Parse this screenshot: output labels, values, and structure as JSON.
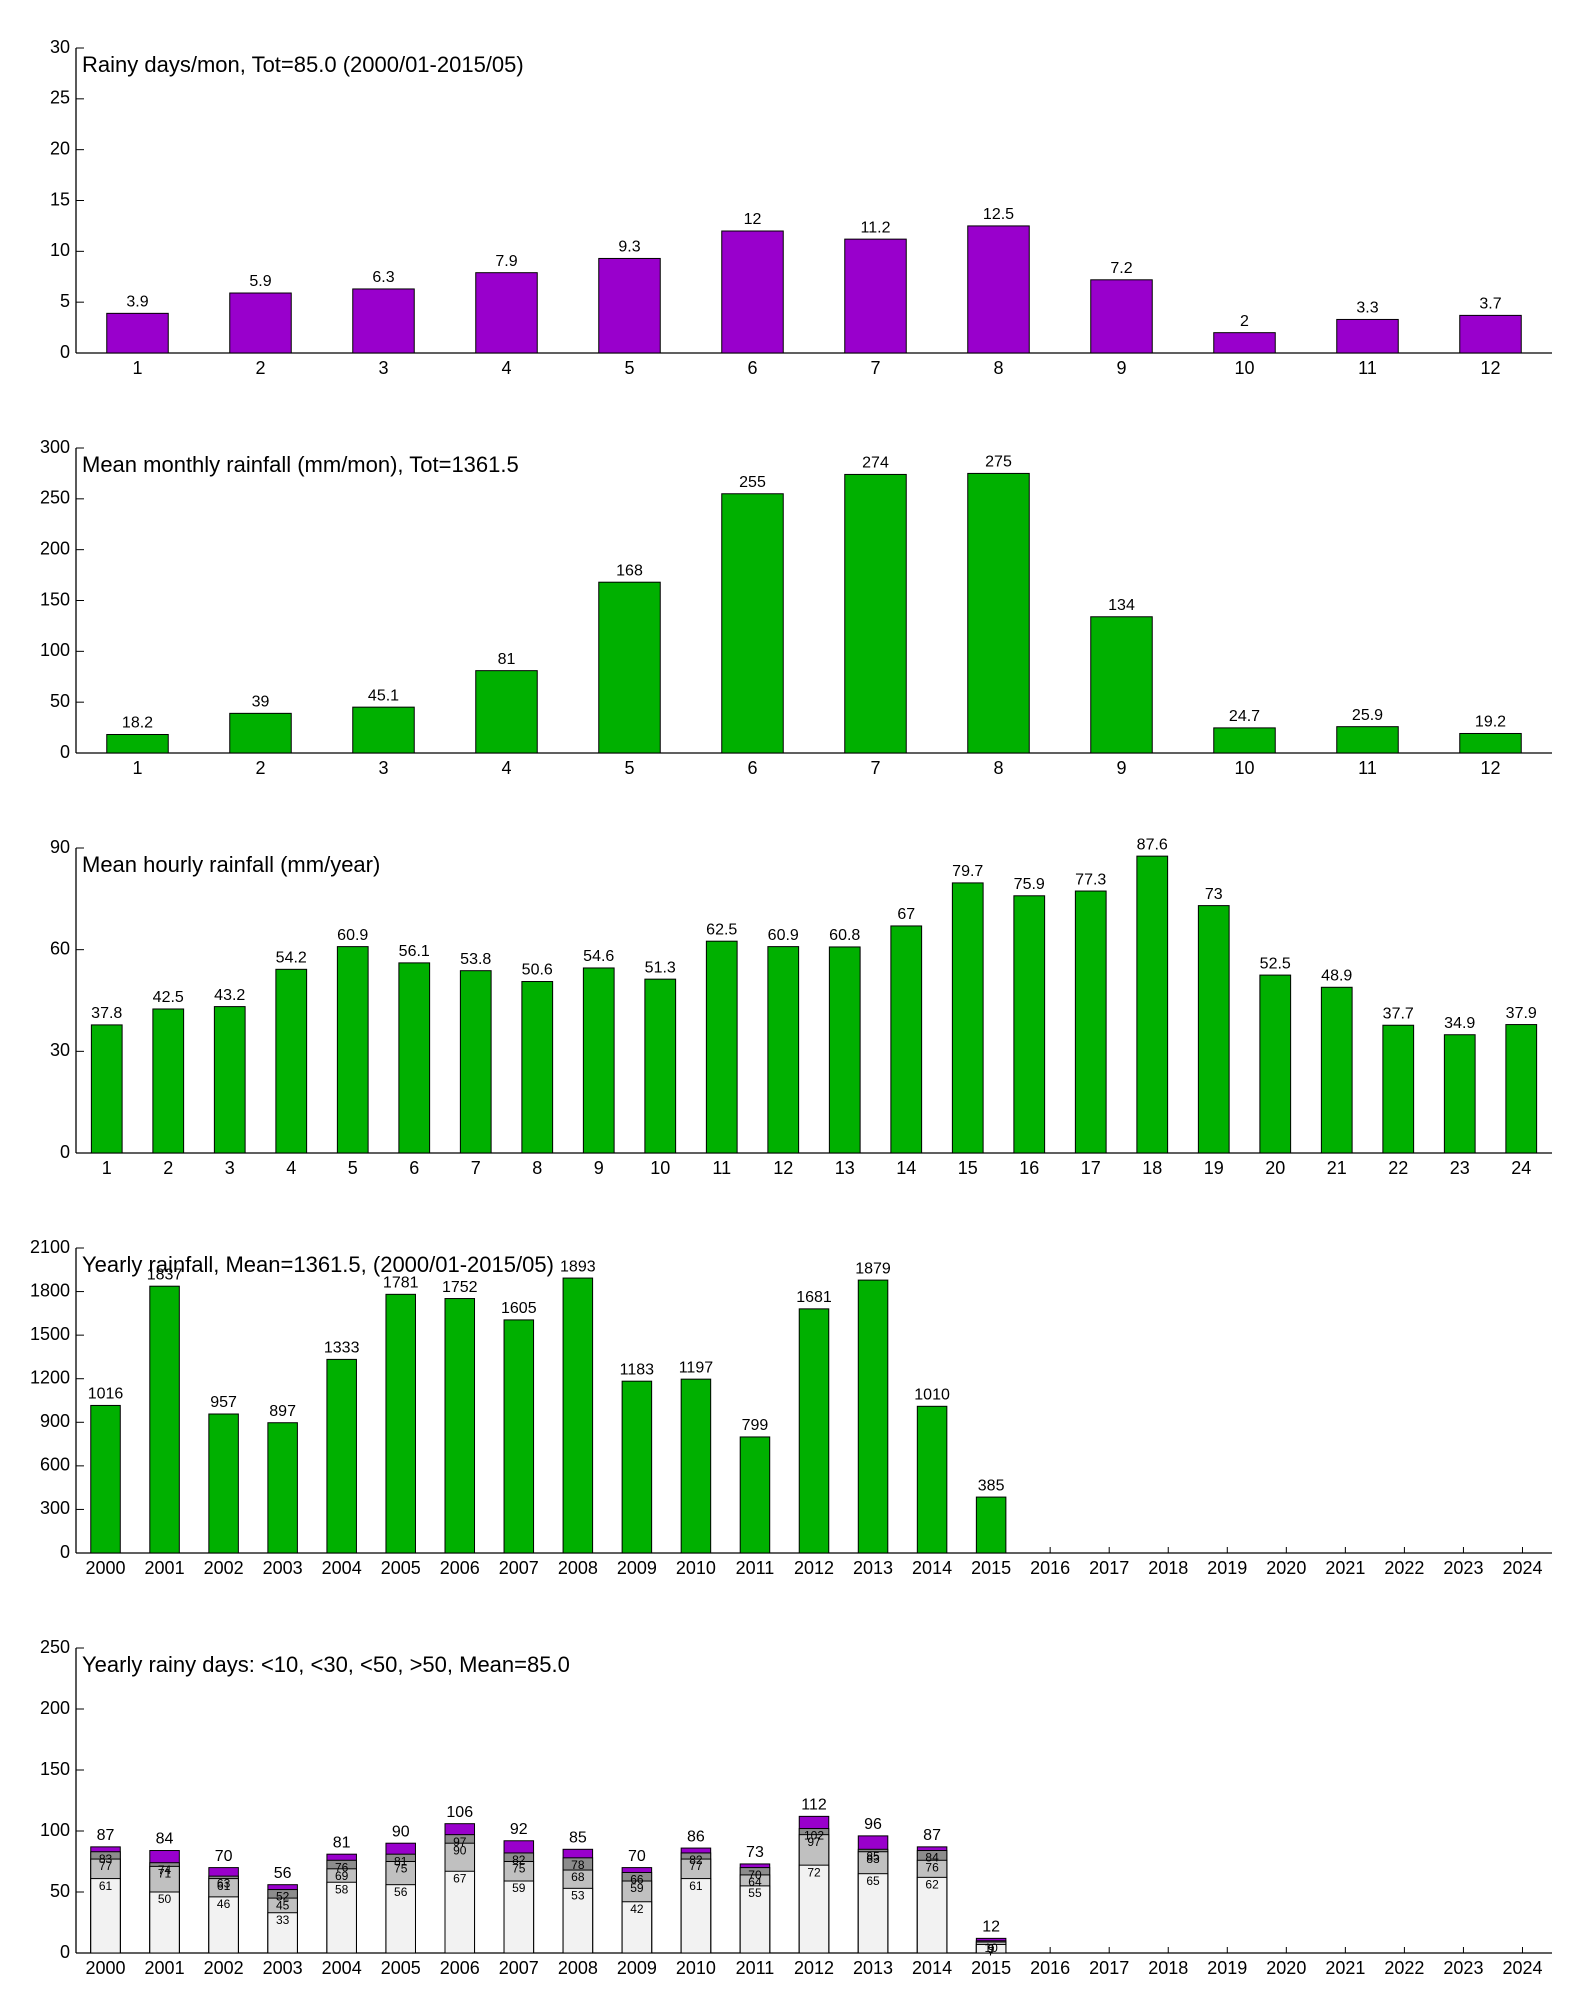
{
  "chart_data": [
    {
      "type": "bar",
      "title": "Rainy days/mon, Tot=85.0 (2000/01-2015/05)",
      "color": "#9900cc",
      "categories": [
        "1",
        "2",
        "3",
        "4",
        "5",
        "6",
        "7",
        "8",
        "9",
        "10",
        "11",
        "12"
      ],
      "values": [
        3.9,
        5.9,
        6.3,
        7.9,
        9.3,
        12,
        11.2,
        12.5,
        7.2,
        2,
        3.3,
        3.7
      ],
      "ylim": [
        0,
        30
      ],
      "yticks": [
        0,
        5,
        10,
        15,
        20,
        25,
        30
      ]
    },
    {
      "type": "bar",
      "title": "Mean monthly rainfall (mm/mon), Tot=1361.5",
      "color": "#00b000",
      "categories": [
        "1",
        "2",
        "3",
        "4",
        "5",
        "6",
        "7",
        "8",
        "9",
        "10",
        "11",
        "12"
      ],
      "values": [
        18.2,
        39,
        45.1,
        81,
        168,
        255,
        274,
        275,
        134,
        24.7,
        25.9,
        19.2
      ],
      "ylim": [
        0,
        300
      ],
      "yticks": [
        0,
        50,
        100,
        150,
        200,
        250,
        300
      ]
    },
    {
      "type": "bar",
      "title": "Mean hourly rainfall (mm/year)",
      "color": "#00b000",
      "categories": [
        "1",
        "2",
        "3",
        "4",
        "5",
        "6",
        "7",
        "8",
        "9",
        "10",
        "11",
        "12",
        "13",
        "14",
        "15",
        "16",
        "17",
        "18",
        "19",
        "20",
        "21",
        "22",
        "23",
        "24"
      ],
      "values": [
        37.8,
        42.5,
        43.2,
        54.2,
        60.9,
        56.1,
        53.8,
        50.6,
        54.6,
        51.3,
        62.5,
        60.9,
        60.8,
        67,
        79.7,
        75.9,
        77.3,
        87.6,
        73,
        52.5,
        48.9,
        37.7,
        34.9,
        37.9
      ],
      "ylim": [
        0,
        90
      ],
      "yticks": [
        0,
        30,
        60,
        90
      ]
    },
    {
      "type": "bar",
      "title": "Yearly rainfall, Mean=1361.5, (2000/01-2015/05)",
      "color": "#00b000",
      "categories": [
        "2000",
        "2001",
        "2002",
        "2003",
        "2004",
        "2005",
        "2006",
        "2007",
        "2008",
        "2009",
        "2010",
        "2011",
        "2012",
        "2013",
        "2014",
        "2015",
        "2016",
        "2017",
        "2018",
        "2019",
        "2020",
        "2021",
        "2022",
        "2023",
        "2024"
      ],
      "values": [
        1016,
        1837,
        957,
        897,
        1333,
        1781,
        1752,
        1605,
        1893,
        1183,
        1197,
        799,
        1681,
        1879,
        1010,
        385,
        null,
        null,
        null,
        null,
        null,
        null,
        null,
        null,
        null
      ],
      "ylim": [
        0,
        2100
      ],
      "yticks": [
        0,
        300,
        600,
        900,
        1200,
        1500,
        1800,
        2100
      ]
    },
    {
      "type": "overlaid",
      "title": "Yearly rainy days: <10, <30, <50, >50, Mean=85.0",
      "categories": [
        "2000",
        "2001",
        "2002",
        "2003",
        "2004",
        "2005",
        "2006",
        "2007",
        "2008",
        "2009",
        "2010",
        "2011",
        "2012",
        "2013",
        "2014",
        "2015",
        "2016",
        "2017",
        "2018",
        "2019",
        "2020",
        "2021",
        "2022",
        "2023",
        "2024"
      ],
      "series": [
        {
          "color": "#f2f2f2",
          "values": [
            61,
            50,
            46,
            33,
            58,
            56,
            67,
            59,
            53,
            42,
            61,
            55,
            72,
            65,
            62,
            7,
            null,
            null,
            null,
            null,
            null,
            null,
            null,
            null,
            null
          ]
        },
        {
          "color": "#c0c0c0",
          "values": [
            77,
            71,
            61,
            45,
            69,
            75,
            90,
            75,
            68,
            59,
            77,
            64,
            97,
            83,
            76,
            9,
            null,
            null,
            null,
            null,
            null,
            null,
            null,
            null,
            null
          ]
        },
        {
          "color": "#8c8c8c",
          "values": [
            83,
            74,
            63,
            52,
            76,
            81,
            97,
            82,
            78,
            66,
            82,
            70,
            102,
            85,
            84,
            10,
            null,
            null,
            null,
            null,
            null,
            null,
            null,
            null,
            null
          ]
        },
        {
          "color": "#9900cc",
          "values": [
            87,
            84,
            70,
            56,
            81,
            90,
            106,
            92,
            85,
            70,
            86,
            73,
            112,
            96,
            87,
            12,
            null,
            null,
            null,
            null,
            null,
            null,
            null,
            null,
            null
          ]
        }
      ],
      "ylim": [
        0,
        250
      ],
      "yticks": [
        0,
        50,
        100,
        150,
        200,
        250
      ]
    }
  ]
}
